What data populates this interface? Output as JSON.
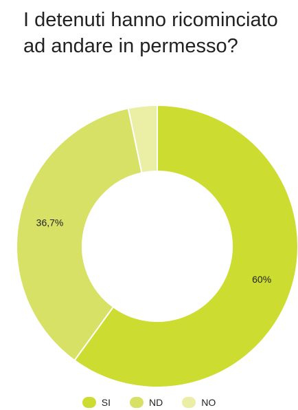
{
  "chart_data": {
    "type": "pie",
    "title": "I detenuti hanno ricominciato ad andare in permesso?",
    "categories": [
      "SI",
      "ND",
      "NO"
    ],
    "values": [
      60,
      36.7,
      3.3
    ],
    "data_labels": [
      "60%",
      "36,7%",
      ""
    ],
    "colors": [
      "#cddc30",
      "#d7e165",
      "#eaefa5"
    ],
    "donut": true,
    "legend_position": "bottom"
  }
}
